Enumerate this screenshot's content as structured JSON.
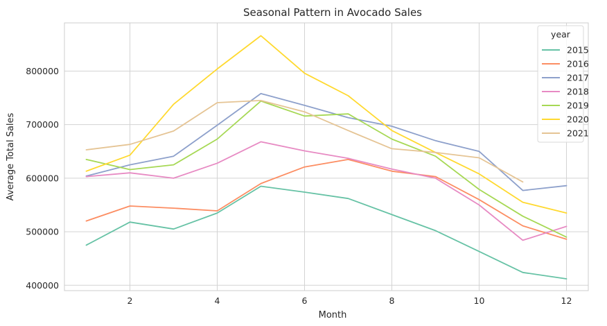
{
  "chart_data": {
    "type": "line",
    "title": "Seasonal Pattern in Avocado Sales",
    "xlabel": "Month",
    "ylabel": "Average Total Sales",
    "xlim": [
      0.5,
      12.5
    ],
    "ylim": [
      390000,
      890000
    ],
    "xticks": [
      2,
      4,
      6,
      8,
      10,
      12
    ],
    "yticks": [
      400000,
      500000,
      600000,
      700000,
      800000
    ],
    "grid": true,
    "legend": {
      "title": "year",
      "placement": "top-right"
    },
    "series": [
      {
        "name": "2015",
        "color": "#66c2a5",
        "x": [
          1,
          2,
          3,
          4,
          5,
          6,
          7,
          8,
          9,
          10,
          11,
          12
        ],
        "values": [
          475000,
          518000,
          505000,
          535000,
          585000,
          574000,
          562000,
          532000,
          502000,
          463000,
          424000,
          412000
        ]
      },
      {
        "name": "2016",
        "color": "#fc8d62",
        "x": [
          1,
          2,
          3,
          4,
          5,
          6,
          7,
          8,
          9,
          10,
          11,
          12
        ],
        "values": [
          520000,
          548000,
          544000,
          539000,
          590000,
          621000,
          635000,
          613000,
          603000,
          560000,
          511000,
          486000
        ]
      },
      {
        "name": "2017",
        "color": "#8da0cb",
        "x": [
          1,
          2,
          3,
          4,
          5,
          6,
          7,
          8,
          9,
          10,
          11,
          12
        ],
        "values": [
          604000,
          625000,
          641000,
          699000,
          758000,
          736000,
          713000,
          697000,
          670000,
          650000,
          577000,
          586000
        ]
      },
      {
        "name": "2018",
        "color": "#e78ac3",
        "x": [
          1,
          2,
          3,
          4,
          5,
          6,
          7,
          8,
          9,
          10,
          11,
          12
        ],
        "values": [
          603000,
          610000,
          600000,
          628000,
          668000,
          651000,
          637000,
          617000,
          600000,
          550000,
          484000,
          510000
        ]
      },
      {
        "name": "2019",
        "color": "#a6d854",
        "x": [
          1,
          2,
          3,
          4,
          5,
          6,
          7,
          8,
          9,
          10,
          11,
          12
        ],
        "values": [
          635000,
          616000,
          625000,
          673000,
          744000,
          716000,
          720000,
          673000,
          641000,
          579000,
          529000,
          490000
        ]
      },
      {
        "name": "2020",
        "color": "#ffd92f",
        "x": [
          1,
          2,
          3,
          4,
          5,
          6,
          7,
          8,
          9,
          10,
          11,
          12
        ],
        "values": [
          613000,
          643000,
          738000,
          804000,
          866000,
          796000,
          754000,
          689000,
          648000,
          608000,
          555000,
          535000
        ]
      },
      {
        "name": "2021",
        "color": "#e5c494",
        "x": [
          1,
          2,
          3,
          4,
          5,
          6,
          7,
          8,
          9,
          10,
          11
        ],
        "values": [
          653000,
          663000,
          688000,
          741000,
          745000,
          724000,
          689000,
          655000,
          648000,
          638000,
          593000
        ]
      }
    ]
  }
}
